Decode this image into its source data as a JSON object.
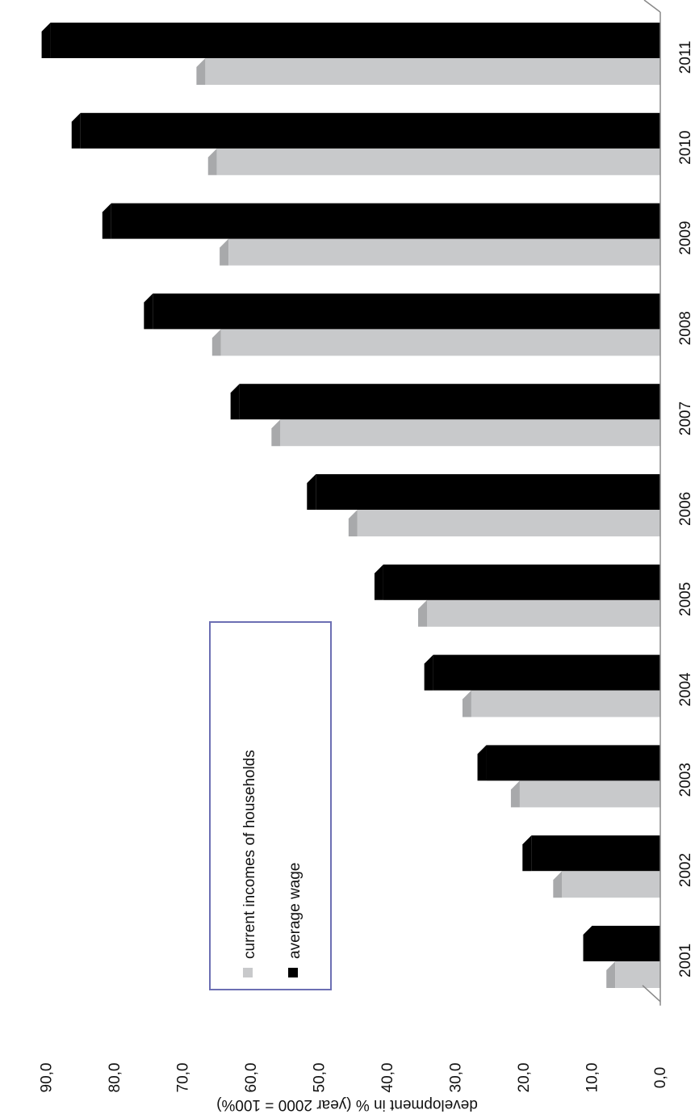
{
  "chart_data": {
    "type": "bar",
    "orientation": "rotated-90-clockwise",
    "categories": [
      "2001",
      "2002",
      "2003",
      "2004",
      "2005",
      "2006",
      "2007",
      "2008",
      "2009",
      "2010",
      "2011"
    ],
    "series": [
      {
        "name": "current incomes of households",
        "color": "#c8c9cb",
        "shade": "#a8a9ab",
        "values": [
          6.6,
          14.4,
          20.6,
          27.7,
          34.2,
          44.4,
          55.7,
          64.4,
          63.3,
          65.0,
          66.7
        ]
      },
      {
        "name": "average wage",
        "color": "#000000",
        "shade": "#000000",
        "values": [
          10.0,
          18.9,
          25.5,
          33.3,
          40.6,
          50.5,
          61.7,
          74.4,
          80.5,
          85.0,
          89.4
        ]
      }
    ],
    "yticks": [
      "0,0",
      "10,0",
      "20,0",
      "30,0",
      "40,0",
      "50,0",
      "60,0",
      "70,0",
      "80,0",
      "90,0"
    ],
    "ylim": [
      0,
      90
    ],
    "ylabel": "development in % (year 2000 = 100%)",
    "xlabel": "",
    "title": "",
    "grid": false,
    "legend": {
      "position": "center-left",
      "border_color": "#6c6fb3"
    }
  }
}
